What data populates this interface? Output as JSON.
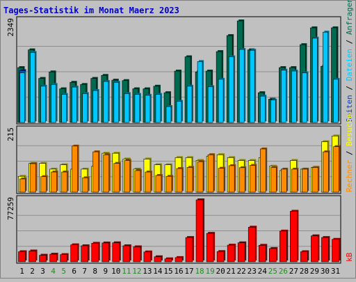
{
  "title": "Tages-Statistik im Monat Maerz 2023",
  "colors": {
    "background": "#c0c0c0",
    "title": "#0000cc",
    "anfragen": "#006a50",
    "dateien": "#00c8ff",
    "seiten": "#1040c0",
    "besuche": "#ffff00",
    "rechner": "#ff8c00",
    "kb": "#ff0000",
    "weekend_label": "#228b22",
    "weekday_label": "#000000"
  },
  "panel1": {
    "max_label": "2349",
    "legend": {
      "anfragen": "Anfragen",
      "dateien": "Dateien",
      "seiten": "Seiten"
    }
  },
  "panel2": {
    "max_label": "215",
    "legend": {
      "besuche": "Besuche",
      "rechner": "Rechner"
    }
  },
  "panel3": {
    "max_label": "77259",
    "legend": {
      "kb": "kB"
    }
  },
  "chart_data": {
    "type": "bar",
    "categories": [
      "1",
      "2",
      "3",
      "4",
      "5",
      "6",
      "7",
      "8",
      "9",
      "10",
      "11",
      "12",
      "13",
      "14",
      "15",
      "16",
      "17",
      "18",
      "19",
      "20",
      "21",
      "22",
      "23",
      "24",
      "25",
      "26",
      "27",
      "28",
      "29",
      "30",
      "31"
    ],
    "weekend_days": [
      "4",
      "5",
      "11",
      "12",
      "18",
      "19",
      "25",
      "26"
    ],
    "panels": [
      {
        "ylim": [
          0,
          2349
        ],
        "series": [
          {
            "name": "Anfragen",
            "values": [
              1270,
              1680,
              1020,
              1170,
              780,
              930,
              880,
              1020,
              1090,
              980,
              970,
              780,
              780,
              840,
              690,
              1190,
              1520,
              1170,
              1190,
              1640,
              2010,
              2349,
              1680,
              690,
              540,
              1270,
              1270,
              1800,
              2189,
              1300,
              2189
            ]
          },
          {
            "name": "Seiten",
            "values": [
              1200,
              0,
              0,
              0,
              0,
              0,
              0,
              0,
              0,
              0,
              0,
              0,
              0,
              0,
              0,
              0,
              0,
              0,
              0,
              0,
              0,
              0,
              0,
              0,
              0,
              0,
              0,
              0,
              0,
              0,
              0
            ]
          },
          {
            "name": "Dateien",
            "values": [
              1150,
              1620,
              840,
              880,
              650,
              820,
              670,
              740,
              950,
              930,
              670,
              650,
              630,
              650,
              370,
              490,
              840,
              1410,
              830,
              1000,
              1520,
              1690,
              1670,
              610,
              520,
              1210,
              1190,
              1150,
              1950,
              2089,
              1000
            ]
          }
        ]
      },
      {
        "ylim": [
          0,
          215
        ],
        "series": [
          {
            "name": "Besuche",
            "values": [
              55,
              100,
              100,
              80,
              95,
              80,
              80,
              90,
              135,
              135,
              115,
              80,
              115,
              95,
              95,
              120,
              120,
              110,
              125,
              130,
              120,
              110,
              110,
              120,
              90,
              75,
              110,
              80,
              86,
              175,
              195
            ]
          },
          {
            "name": "Rechner",
            "values": [
              46,
              99,
              54,
              70,
              70,
              160,
              50,
              140,
              130,
              100,
              110,
              75,
              70,
              58,
              55,
              82,
              86,
              106,
              130,
              83,
              92,
              85,
              93,
              150,
              86,
              80,
              80,
              80,
              86,
              140,
              158
            ]
          }
        ]
      },
      {
        "ylim": [
          0,
          77259
        ],
        "series": [
          {
            "name": "kB",
            "values": [
              12600,
              13500,
              8200,
              9500,
              9000,
              21200,
              20000,
              23100,
              23500,
              23700,
              20000,
              18700,
              12300,
              6300,
              3700,
              5300,
              30300,
              77259,
              35500,
              12800,
              20800,
              23700,
              43200,
              20600,
              16600,
              38300,
              63000,
              12600,
              32400,
              30300,
              28000
            ]
          }
        ]
      }
    ]
  }
}
